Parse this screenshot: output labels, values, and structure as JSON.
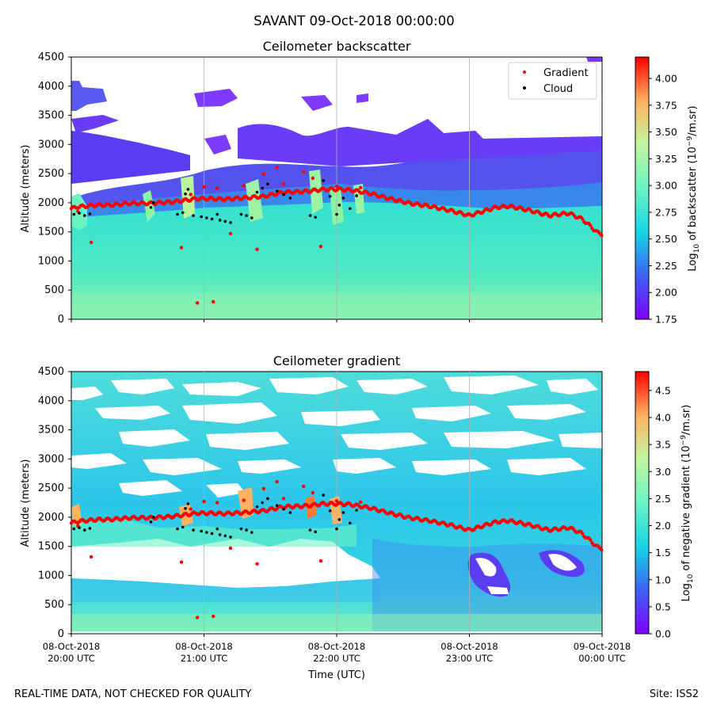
{
  "figure": {
    "suptitle": "SAVANT 09-Oct-2018 00:00:00",
    "footer_left": "REAL-TIME DATA, NOT CHECKED FOR QUALITY",
    "footer_right": "Site: ISS2"
  },
  "colors": {
    "gradient_marker": "#ff0000",
    "cloud_marker": "#000000",
    "colormap": [
      "#7f00ff",
      "#3b64f5",
      "#16d4e6",
      "#6bf5c3",
      "#c3f59f",
      "#ffb360",
      "#ff0000"
    ]
  },
  "chart_data": [
    {
      "type": "heatmap",
      "title": "Ceilometer backscatter",
      "ylabel": "Altitude (meters)",
      "xlabel": "",
      "ylim": [
        0,
        4500
      ],
      "yticks": [
        "0",
        "500",
        "1000",
        "1500",
        "2000",
        "2500",
        "3000",
        "3500",
        "4000",
        "4500"
      ],
      "xticks": [],
      "colorbar": {
        "label_prefix": "Log",
        "label_sub": "10",
        "label_mid": " of backscatter (10",
        "label_sup": "−9",
        "label_suffix": "/m.sr)",
        "range": [
          1.75,
          4.2
        ],
        "ticks": [
          "1.75",
          "2.00",
          "2.25",
          "2.50",
          "2.75",
          "3.00",
          "3.25",
          "3.50",
          "3.75",
          "4.00"
        ]
      },
      "legend": {
        "position": "top-right",
        "entries": [
          "Gradient",
          "Cloud"
        ]
      }
    },
    {
      "type": "heatmap",
      "title": "Ceilometer gradient",
      "ylabel": "Altitude (meters)",
      "xlabel": "Time (UTC)",
      "ylim": [
        0,
        4500
      ],
      "yticks": [
        "0",
        "500",
        "1000",
        "1500",
        "2000",
        "2500",
        "3000",
        "3500",
        "4000",
        "4500"
      ],
      "xticks": [
        {
          "line1": "08-Oct-2018",
          "line2": "20:00 UTC"
        },
        {
          "line1": "08-Oct-2018",
          "line2": "21:00 UTC"
        },
        {
          "line1": "08-Oct-2018",
          "line2": "22:00 UTC"
        },
        {
          "line1": "08-Oct-2018",
          "line2": "23:00 UTC"
        },
        {
          "line1": "09-Oct-2018",
          "line2": "00:00 UTC"
        }
      ],
      "colorbar": {
        "label_prefix": "Log",
        "label_sub": "10",
        "label_mid": " of negative gradient (10",
        "label_sup": "−9",
        "label_suffix": "/m.sr)",
        "range": [
          0.0,
          4.85
        ],
        "ticks": [
          "0.0",
          "0.5",
          "1.0",
          "1.5",
          "2.0",
          "2.5",
          "3.0",
          "3.5",
          "4.0",
          "4.5"
        ]
      }
    }
  ],
  "series": {
    "time_hours": [
      0,
      4
    ],
    "gradient_layer": [
      [
        0.0,
        1900
      ],
      [
        0.05,
        1930
      ],
      [
        0.1,
        1940
      ],
      [
        0.2,
        1960
      ],
      [
        0.3,
        1960
      ],
      [
        0.45,
        1990
      ],
      [
        0.6,
        1990
      ],
      [
        0.75,
        2010
      ],
      [
        0.95,
        2070
      ],
      [
        1.05,
        2070
      ],
      [
        1.15,
        2060
      ],
      [
        1.3,
        2080
      ],
      [
        1.45,
        2110
      ],
      [
        1.6,
        2180
      ],
      [
        1.75,
        2190
      ],
      [
        1.9,
        2230
      ],
      [
        2.0,
        2230
      ],
      [
        2.1,
        2220
      ],
      [
        2.25,
        2160
      ],
      [
        2.4,
        2070
      ],
      [
        2.55,
        1990
      ],
      [
        2.7,
        1940
      ],
      [
        2.85,
        1870
      ],
      [
        3.0,
        1780
      ],
      [
        3.1,
        1850
      ],
      [
        3.2,
        1920
      ],
      [
        3.3,
        1940
      ],
      [
        3.45,
        1870
      ],
      [
        3.6,
        1780
      ],
      [
        3.75,
        1820
      ],
      [
        3.85,
        1720
      ],
      [
        3.9,
        1620
      ],
      [
        3.97,
        1480
      ],
      [
        4.0,
        1460
      ]
    ],
    "gradient_scatter": [
      [
        0.05,
        1850
      ],
      [
        0.15,
        1320
      ],
      [
        0.83,
        1230
      ],
      [
        0.95,
        280
      ],
      [
        1.07,
        300
      ],
      [
        1.2,
        1470
      ],
      [
        1.4,
        1200
      ],
      [
        1.88,
        1250
      ],
      [
        1.55,
        2610
      ],
      [
        1.75,
        2530
      ],
      [
        0.75,
        2010
      ],
      [
        1.0,
        2270
      ],
      [
        0.9,
        2140
      ],
      [
        1.1,
        2250
      ],
      [
        1.3,
        2290
      ],
      [
        1.45,
        2490
      ],
      [
        1.6,
        2320
      ],
      [
        1.82,
        2420
      ],
      [
        2.0,
        2280
      ],
      [
        2.18,
        2260
      ]
    ],
    "cloud_points": [
      [
        0.02,
        1800
      ],
      [
        0.06,
        1820
      ],
      [
        0.1,
        1780
      ],
      [
        0.14,
        1810
      ],
      [
        0.6,
        1920
      ],
      [
        0.62,
        2000
      ],
      [
        0.8,
        1800
      ],
      [
        0.84,
        1830
      ],
      [
        0.86,
        2150
      ],
      [
        0.88,
        2230
      ],
      [
        0.92,
        1780
      ],
      [
        0.98,
        1760
      ],
      [
        1.02,
        1740
      ],
      [
        1.06,
        1720
      ],
      [
        1.1,
        1800
      ],
      [
        1.12,
        1700
      ],
      [
        1.16,
        1680
      ],
      [
        1.2,
        1660
      ],
      [
        1.28,
        1800
      ],
      [
        1.32,
        1780
      ],
      [
        1.36,
        1740
      ],
      [
        1.4,
        2180
      ],
      [
        1.44,
        2250
      ],
      [
        1.48,
        2320
      ],
      [
        1.55,
        2200
      ],
      [
        1.6,
        2140
      ],
      [
        1.65,
        2080
      ],
      [
        1.8,
        1780
      ],
      [
        1.84,
        1750
      ],
      [
        1.9,
        2380
      ],
      [
        1.95,
        2110
      ],
      [
        2.0,
        1800
      ],
      [
        2.02,
        1960
      ],
      [
        2.05,
        2080
      ],
      [
        2.15,
        2120
      ],
      [
        2.1,
        1900
      ]
    ]
  }
}
